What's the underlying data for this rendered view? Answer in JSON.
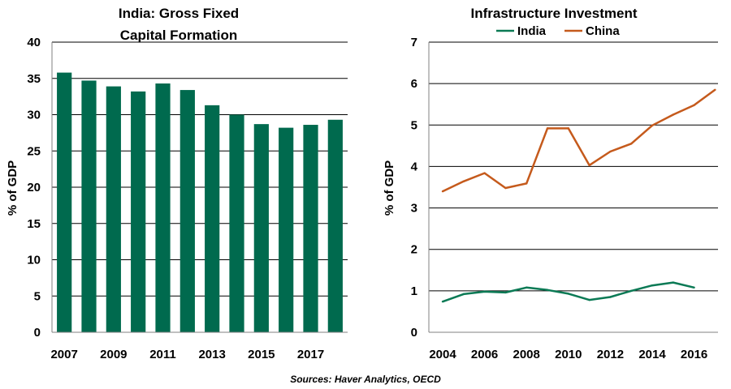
{
  "colors": {
    "bar_green": "#006a4e",
    "india_line": "#0b7a55",
    "china_line": "#c55a1c"
  },
  "source": "Sources: Haver Analytics, OECD",
  "chart_data": [
    {
      "type": "bar",
      "title_lines": [
        "India: Gross Fixed",
        "Capital Formation"
      ],
      "ylabel": "% of GDP",
      "xlabel": "",
      "categories": [
        "2007",
        "2008",
        "2009",
        "2010",
        "2011",
        "2012",
        "2013",
        "2014",
        "2015",
        "2016",
        "2017",
        "2018"
      ],
      "values": [
        35.8,
        34.7,
        33.9,
        33.2,
        34.3,
        33.4,
        31.3,
        30.0,
        28.7,
        28.2,
        28.6,
        29.3
      ],
      "ylim": [
        0,
        40
      ],
      "yticks": [
        "0",
        "5",
        "10",
        "15",
        "20",
        "25",
        "30",
        "35",
        "40"
      ],
      "xtick_labels": [
        "2007",
        "2009",
        "2011",
        "2013",
        "2015",
        "2017"
      ],
      "grid": true,
      "legend": "none"
    },
    {
      "type": "line",
      "title": "Infrastructure Investment",
      "ylabel": "% of GDP",
      "xlabel": "",
      "xlim": [
        2004,
        2017.5
      ],
      "ylim": [
        0,
        7
      ],
      "yticks": [
        "0",
        "1",
        "2",
        "3",
        "4",
        "5",
        "6",
        "7"
      ],
      "xtick_labels": [
        "2004",
        "2006",
        "2008",
        "2010",
        "2012",
        "2014",
        "2016"
      ],
      "grid": true,
      "legend": "top-center",
      "series": [
        {
          "name": "India",
          "x": [
            2004,
            2005,
            2006,
            2007,
            2008,
            2009,
            2010,
            2011,
            2012,
            2013,
            2014,
            2015,
            2016
          ],
          "values": [
            0.74,
            0.92,
            0.98,
            0.96,
            1.08,
            1.02,
            0.93,
            0.78,
            0.85,
            1.0,
            1.13,
            1.2,
            1.08
          ]
        },
        {
          "name": "China",
          "x": [
            2004,
            2005,
            2006,
            2007,
            2008,
            2009,
            2010,
            2011,
            2012,
            2013,
            2014,
            2015,
            2016,
            2017
          ],
          "values": [
            3.4,
            3.64,
            3.84,
            3.48,
            3.59,
            4.92,
            4.92,
            4.03,
            4.36,
            4.55,
            4.99,
            5.25,
            5.48,
            5.85
          ]
        }
      ]
    }
  ]
}
